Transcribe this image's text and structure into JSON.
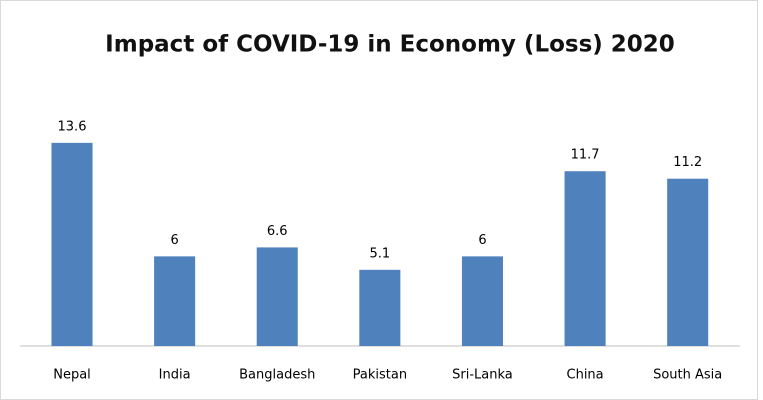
{
  "chart_data": {
    "type": "bar",
    "title": "Impact of COVID-19 in Economy (Loss) 2020",
    "categories": [
      "Nepal",
      "India",
      "Bangladesh",
      "Pakistan",
      "Sri-Lanka",
      "China",
      "South Asia"
    ],
    "values": [
      13.6,
      6,
      6.6,
      5.1,
      6,
      11.7,
      11.2
    ],
    "color": "#4f81bd",
    "ylim": [
      0,
      16
    ]
  }
}
